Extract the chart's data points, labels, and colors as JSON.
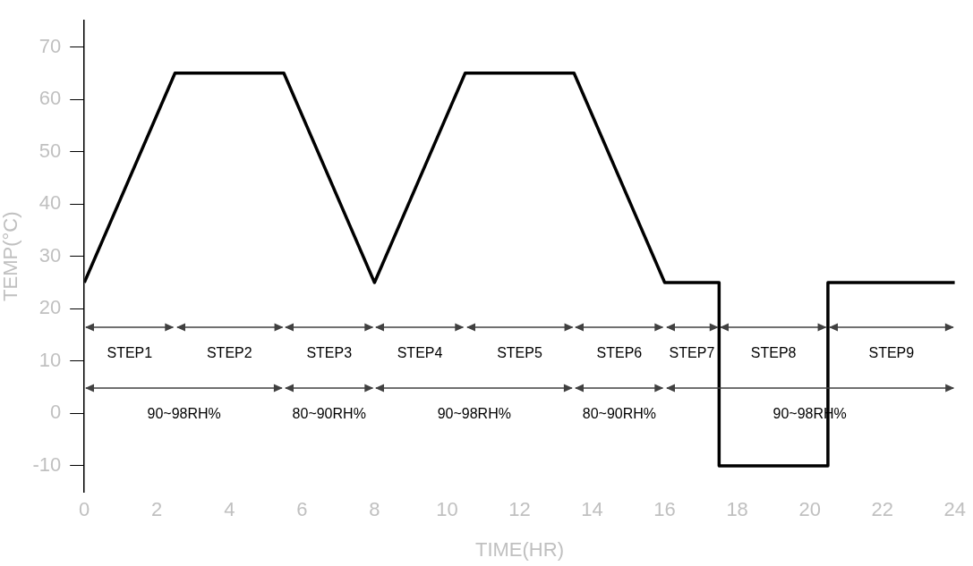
{
  "chart_data": {
    "type": "line",
    "xlabel": "TIME(HR)",
    "ylabel": "TEMP(°C)",
    "x": [
      0,
      2.5,
      5.5,
      8,
      10.5,
      13.5,
      16,
      17.5,
      17.5,
      20.5,
      20.5,
      24
    ],
    "series": [
      {
        "color": "#000000",
        "values": [
          25,
          65,
          65,
          25,
          65,
          65,
          25,
          25,
          -10,
          -10,
          25,
          25
        ]
      }
    ],
    "xlim": [
      0,
      24
    ],
    "xticks": [
      0,
      2,
      4,
      6,
      8,
      10,
      12,
      14,
      16,
      18,
      20,
      22,
      24
    ],
    "ylim": [
      -15,
      75
    ],
    "yticks": [
      -10,
      0,
      10,
      20,
      30,
      40,
      50,
      60,
      70
    ],
    "annotations": [
      "STEP1",
      "STEP2",
      "STEP3",
      "STEP4",
      "STEP5",
      "STEP6",
      "STEP7",
      "STEP8",
      "STEP9",
      "90~98RH%",
      "80~90RH%",
      "90~98RH%",
      "80~90RH%",
      "90~98RH%"
    ],
    "grid": false,
    "legend": false,
    "marker": "none",
    "line_style": "solid"
  }
}
